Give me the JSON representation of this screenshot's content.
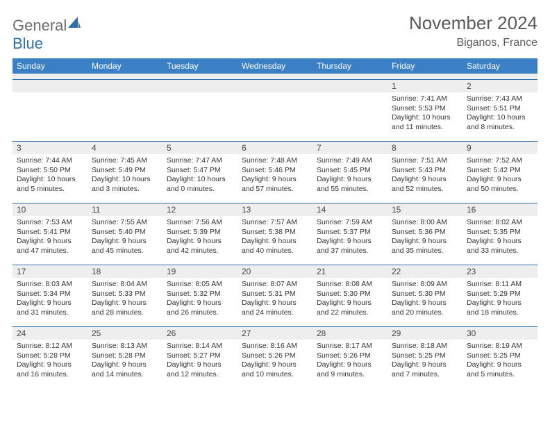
{
  "brand": {
    "name_part1": "General",
    "name_part2": "Blue",
    "text_color_gray": "#6d6d6d",
    "text_color_blue": "#2f6fb0",
    "sail_color": "#2f6fb0"
  },
  "header": {
    "month_title": "November 2024",
    "location": "Biganos, France",
    "title_color": "#5a5a5a",
    "title_fontsize": 26,
    "location_fontsize": 16
  },
  "calendar": {
    "weekday_bg": "#3b7fc4",
    "weekday_fg": "#ffffff",
    "daynum_bg": "#eeeeee",
    "border_color": "#2f6fb0",
    "detail_fontsize": 10.5,
    "weekdays": [
      "Sunday",
      "Monday",
      "Tuesday",
      "Wednesday",
      "Thursday",
      "Friday",
      "Saturday"
    ],
    "weeks": [
      [
        null,
        null,
        null,
        null,
        null,
        {
          "n": "1",
          "sr": "7:41 AM",
          "ss": "5:53 PM",
          "dl": "10 hours and 11 minutes."
        },
        {
          "n": "2",
          "sr": "7:43 AM",
          "ss": "5:51 PM",
          "dl": "10 hours and 8 minutes."
        }
      ],
      [
        {
          "n": "3",
          "sr": "7:44 AM",
          "ss": "5:50 PM",
          "dl": "10 hours and 5 minutes."
        },
        {
          "n": "4",
          "sr": "7:45 AM",
          "ss": "5:49 PM",
          "dl": "10 hours and 3 minutes."
        },
        {
          "n": "5",
          "sr": "7:47 AM",
          "ss": "5:47 PM",
          "dl": "10 hours and 0 minutes."
        },
        {
          "n": "6",
          "sr": "7:48 AM",
          "ss": "5:46 PM",
          "dl": "9 hours and 57 minutes."
        },
        {
          "n": "7",
          "sr": "7:49 AM",
          "ss": "5:45 PM",
          "dl": "9 hours and 55 minutes."
        },
        {
          "n": "8",
          "sr": "7:51 AM",
          "ss": "5:43 PM",
          "dl": "9 hours and 52 minutes."
        },
        {
          "n": "9",
          "sr": "7:52 AM",
          "ss": "5:42 PM",
          "dl": "9 hours and 50 minutes."
        }
      ],
      [
        {
          "n": "10",
          "sr": "7:53 AM",
          "ss": "5:41 PM",
          "dl": "9 hours and 47 minutes."
        },
        {
          "n": "11",
          "sr": "7:55 AM",
          "ss": "5:40 PM",
          "dl": "9 hours and 45 minutes."
        },
        {
          "n": "12",
          "sr": "7:56 AM",
          "ss": "5:39 PM",
          "dl": "9 hours and 42 minutes."
        },
        {
          "n": "13",
          "sr": "7:57 AM",
          "ss": "5:38 PM",
          "dl": "9 hours and 40 minutes."
        },
        {
          "n": "14",
          "sr": "7:59 AM",
          "ss": "5:37 PM",
          "dl": "9 hours and 37 minutes."
        },
        {
          "n": "15",
          "sr": "8:00 AM",
          "ss": "5:36 PM",
          "dl": "9 hours and 35 minutes."
        },
        {
          "n": "16",
          "sr": "8:02 AM",
          "ss": "5:35 PM",
          "dl": "9 hours and 33 minutes."
        }
      ],
      [
        {
          "n": "17",
          "sr": "8:03 AM",
          "ss": "5:34 PM",
          "dl": "9 hours and 31 minutes."
        },
        {
          "n": "18",
          "sr": "8:04 AM",
          "ss": "5:33 PM",
          "dl": "9 hours and 28 minutes."
        },
        {
          "n": "19",
          "sr": "8:05 AM",
          "ss": "5:32 PM",
          "dl": "9 hours and 26 minutes."
        },
        {
          "n": "20",
          "sr": "8:07 AM",
          "ss": "5:31 PM",
          "dl": "9 hours and 24 minutes."
        },
        {
          "n": "21",
          "sr": "8:08 AM",
          "ss": "5:30 PM",
          "dl": "9 hours and 22 minutes."
        },
        {
          "n": "22",
          "sr": "8:09 AM",
          "ss": "5:30 PM",
          "dl": "9 hours and 20 minutes."
        },
        {
          "n": "23",
          "sr": "8:11 AM",
          "ss": "5:29 PM",
          "dl": "9 hours and 18 minutes."
        }
      ],
      [
        {
          "n": "24",
          "sr": "8:12 AM",
          "ss": "5:28 PM",
          "dl": "9 hours and 16 minutes."
        },
        {
          "n": "25",
          "sr": "8:13 AM",
          "ss": "5:28 PM",
          "dl": "9 hours and 14 minutes."
        },
        {
          "n": "26",
          "sr": "8:14 AM",
          "ss": "5:27 PM",
          "dl": "9 hours and 12 minutes."
        },
        {
          "n": "27",
          "sr": "8:16 AM",
          "ss": "5:26 PM",
          "dl": "9 hours and 10 minutes."
        },
        {
          "n": "28",
          "sr": "8:17 AM",
          "ss": "5:26 PM",
          "dl": "9 hours and 9 minutes."
        },
        {
          "n": "29",
          "sr": "8:18 AM",
          "ss": "5:25 PM",
          "dl": "9 hours and 7 minutes."
        },
        {
          "n": "30",
          "sr": "8:19 AM",
          "ss": "5:25 PM",
          "dl": "9 hours and 5 minutes."
        }
      ]
    ],
    "labels": {
      "sunrise": "Sunrise:",
      "sunset": "Sunset:",
      "daylight": "Daylight:"
    }
  }
}
